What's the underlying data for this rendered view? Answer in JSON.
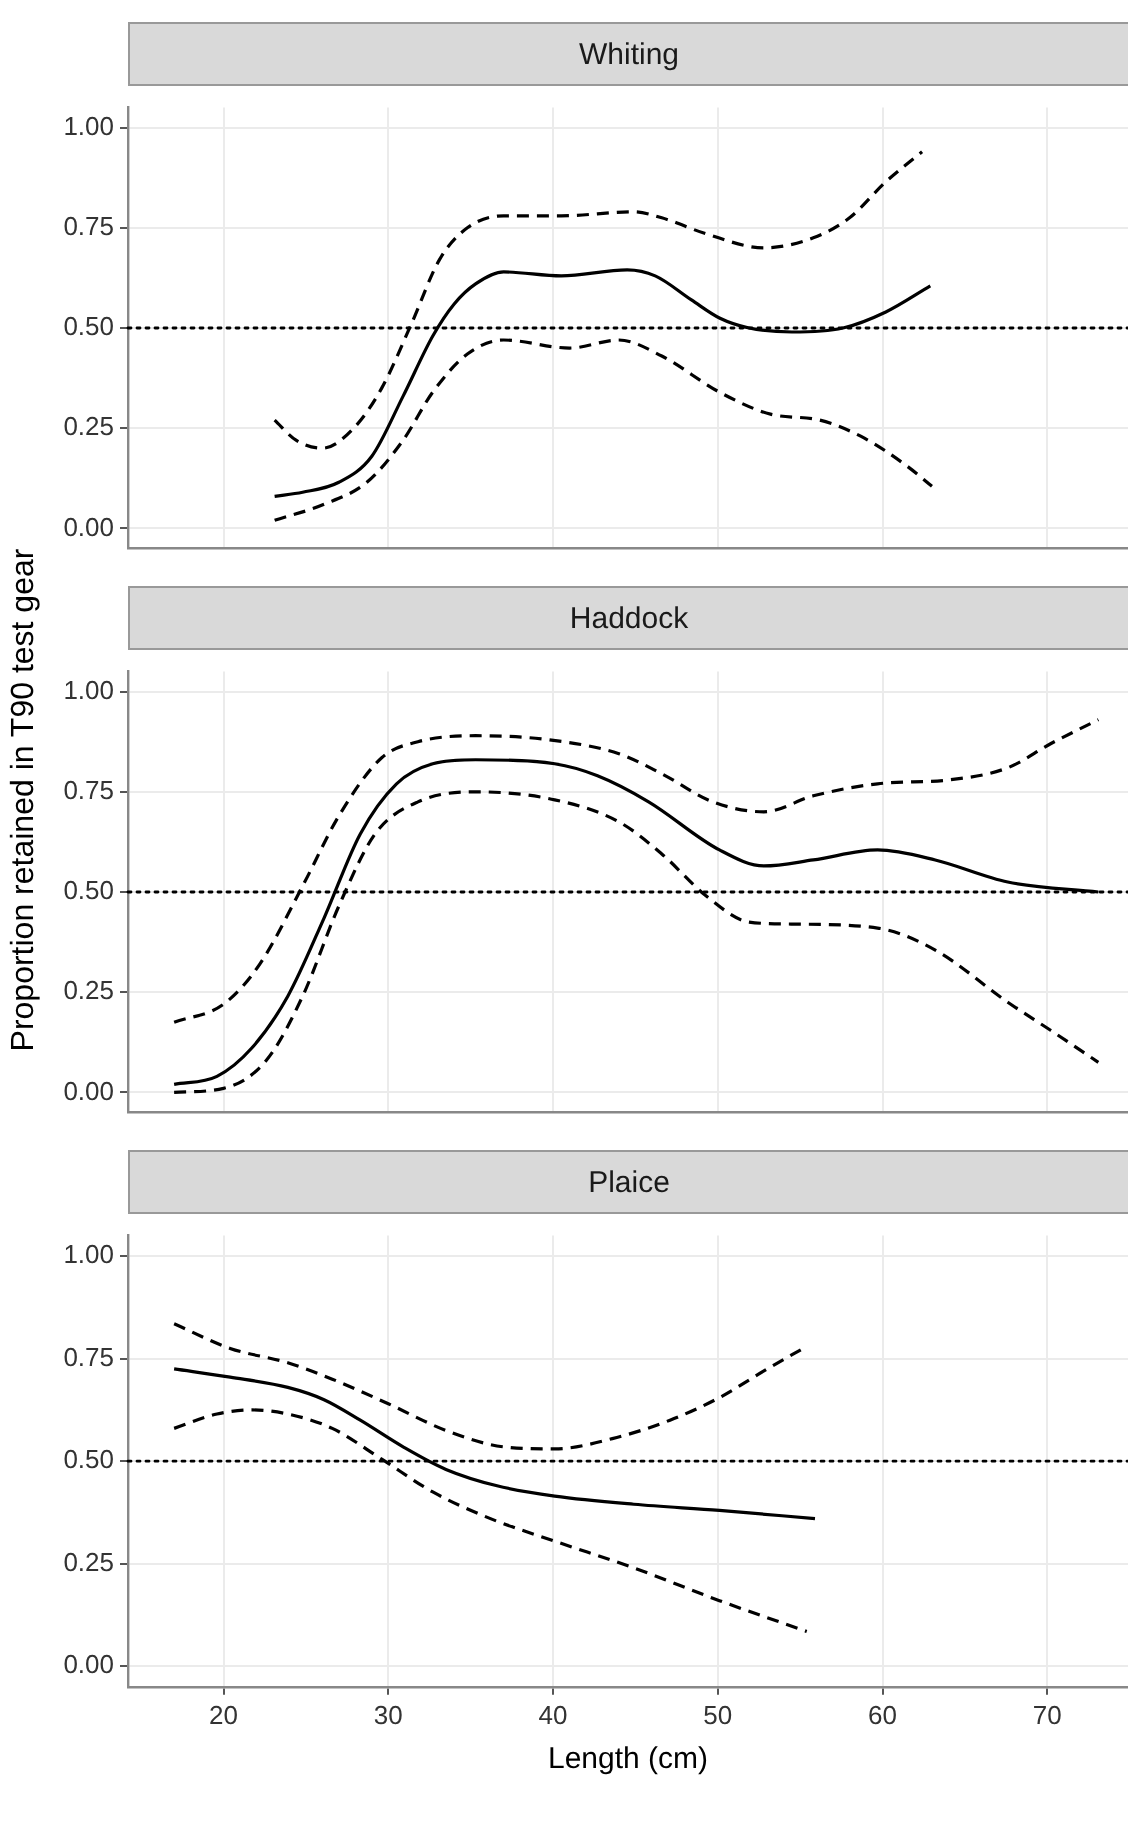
{
  "chart_data": [
    {
      "type": "line",
      "title": "Whiting",
      "xlim": [
        14.2,
        74.9
      ],
      "xticks": [
        20,
        30,
        40,
        50,
        60,
        70
      ],
      "ylim": [
        -0.05,
        1.05
      ],
      "yticks": [
        {
          "value": 0,
          "label": "0.00"
        },
        {
          "value": 0.25,
          "label": "0.25"
        },
        {
          "value": 0.5,
          "label": "0.50"
        },
        {
          "value": 0.75,
          "label": "0.75"
        },
        {
          "value": 1,
          "label": "1.00"
        }
      ],
      "grid": true,
      "tick_labels": "y",
      "ref_lines": [
        {
          "axis": "y",
          "value": 0.5,
          "line_style": "dotted",
          "color": "#000000"
        }
      ],
      "series": [
        {
          "color": "#000000",
          "line_style": "solid",
          "x": [
            23.1,
            24.8,
            27,
            29,
            30.9,
            32.7,
            34,
            35.3,
            37,
            40.5,
            44.5,
            46.2,
            48.4,
            50.1,
            51.9,
            54.5,
            57.6,
            60.2,
            62.9
          ],
          "values": [
            0.08,
            0.09,
            0.115,
            0.18,
            0.33,
            0.48,
            0.56,
            0.61,
            0.64,
            0.63,
            0.645,
            0.63,
            0.57,
            0.525,
            0.5,
            0.49,
            0.5,
            0.54,
            0.605
          ]
        },
        {
          "color": "#000000",
          "line_style": "dashed",
          "x": [
            23.1,
            24.4,
            26,
            27.9,
            29.6,
            31.4,
            33.1,
            34.8,
            37,
            40.5,
            44.9,
            46.6,
            49.3,
            52.8,
            55.8,
            58,
            60.2,
            62.4
          ],
          "values": [
            0.27,
            0.22,
            0.2,
            0.25,
            0.35,
            0.51,
            0.67,
            0.75,
            0.78,
            0.78,
            0.79,
            0.775,
            0.735,
            0.7,
            0.725,
            0.775,
            0.865,
            0.94
          ]
        },
        {
          "color": "#000000",
          "line_style": "dashed",
          "x": [
            23.1,
            26.1,
            28.7,
            30.9,
            32.7,
            34.8,
            37,
            41,
            44,
            46.6,
            50.1,
            53.2,
            56.2,
            58.9,
            61.5,
            63
          ],
          "values": [
            0.02,
            0.06,
            0.115,
            0.22,
            0.34,
            0.435,
            0.47,
            0.45,
            0.47,
            0.43,
            0.34,
            0.285,
            0.27,
            0.225,
            0.155,
            0.105
          ]
        }
      ]
    },
    {
      "type": "line",
      "title": "Haddock",
      "ylabel": "Proportion retained in T90 test gear",
      "xlim": [
        14.2,
        74.9
      ],
      "xticks": [
        20,
        30,
        40,
        50,
        60,
        70
      ],
      "ylim": [
        -0.05,
        1.05
      ],
      "yticks": [
        {
          "value": 0,
          "label": "0.00"
        },
        {
          "value": 0.25,
          "label": "0.25"
        },
        {
          "value": 0.5,
          "label": "0.50"
        },
        {
          "value": 0.75,
          "label": "0.75"
        },
        {
          "value": 1,
          "label": "1.00"
        }
      ],
      "grid": true,
      "tick_labels": "y",
      "ref_lines": [
        {
          "axis": "y",
          "value": 0.5,
          "line_style": "dotted",
          "color": "#000000"
        }
      ],
      "series": [
        {
          "color": "#000000",
          "line_style": "solid",
          "x": [
            17,
            19.6,
            21.7,
            23.9,
            26.1,
            28.3,
            30.5,
            32.7,
            35.3,
            40.1,
            42.7,
            45.8,
            50.1,
            52.8,
            55.8,
            59.7,
            63.2,
            67.6,
            73.1
          ],
          "values": [
            0.02,
            0.04,
            0.11,
            0.24,
            0.435,
            0.645,
            0.77,
            0.82,
            0.83,
            0.82,
            0.79,
            0.725,
            0.605,
            0.565,
            0.58,
            0.605,
            0.58,
            0.525,
            0.5
          ]
        },
        {
          "color": "#000000",
          "line_style": "dashed",
          "x": [
            17,
            20,
            22.2,
            24.8,
            27,
            29.6,
            31.8,
            35.3,
            39.7,
            44,
            46.6,
            49.7,
            52.8,
            55.8,
            59.7,
            64.1,
            67.6,
            70.2,
            73.1
          ],
          "values": [
            0.175,
            0.22,
            0.32,
            0.515,
            0.69,
            0.835,
            0.875,
            0.89,
            0.88,
            0.845,
            0.795,
            0.725,
            0.7,
            0.74,
            0.77,
            0.78,
            0.81,
            0.87,
            0.93
          ]
        },
        {
          "color": "#000000",
          "line_style": "dashed",
          "x": [
            17,
            20,
            22.6,
            24.8,
            27,
            29.2,
            31.8,
            35.3,
            40.1,
            44,
            46.6,
            49.3,
            51.9,
            54.5,
            59.7,
            63.2,
            67.6,
            70.2,
            73.1
          ],
          "values": [
            0,
            0.01,
            0.08,
            0.24,
            0.465,
            0.645,
            0.725,
            0.75,
            0.73,
            0.675,
            0.595,
            0.49,
            0.425,
            0.42,
            0.41,
            0.355,
            0.225,
            0.155,
            0.075
          ]
        }
      ]
    },
    {
      "type": "line",
      "title": "Plaice",
      "xlabel": "Length (cm)",
      "xlim": [
        14.2,
        74.9
      ],
      "xticks": [
        20,
        30,
        40,
        50,
        60,
        70
      ],
      "ylim": [
        -0.05,
        1.05
      ],
      "yticks": [
        {
          "value": 0,
          "label": "0.00"
        },
        {
          "value": 0.25,
          "label": "0.25"
        },
        {
          "value": 0.5,
          "label": "0.50"
        },
        {
          "value": 0.75,
          "label": "0.75"
        },
        {
          "value": 1,
          "label": "1.00"
        }
      ],
      "grid": true,
      "ref_lines": [
        {
          "axis": "y",
          "value": 0.5,
          "line_style": "dotted",
          "color": "#000000"
        }
      ],
      "series": [
        {
          "color": "#000000",
          "line_style": "solid",
          "x": [
            17,
            20.4,
            23.9,
            26.1,
            28.3,
            30.9,
            33.5,
            36.6,
            40.1,
            44.9,
            50.1,
            55.9
          ],
          "values": [
            0.725,
            0.705,
            0.68,
            0.65,
            0.6,
            0.535,
            0.48,
            0.44,
            0.415,
            0.395,
            0.38,
            0.36
          ]
        },
        {
          "color": "#000000",
          "line_style": "dashed",
          "x": [
            17,
            20.4,
            23.9,
            26.6,
            30,
            33.5,
            37,
            40.1,
            43.6,
            47.1,
            50.1,
            52.8,
            55.4
          ],
          "values": [
            0.835,
            0.775,
            0.74,
            0.7,
            0.64,
            0.575,
            0.535,
            0.53,
            0.555,
            0.6,
            0.655,
            0.72,
            0.78
          ]
        },
        {
          "color": "#000000",
          "line_style": "dashed",
          "x": [
            17,
            19.6,
            21.7,
            23.9,
            26.6,
            29.6,
            32.7,
            36.2,
            40.1,
            44.9,
            50.1,
            55.4
          ],
          "values": [
            0.58,
            0.615,
            0.625,
            0.615,
            0.58,
            0.505,
            0.425,
            0.36,
            0.305,
            0.24,
            0.16,
            0.085
          ]
        }
      ]
    }
  ]
}
